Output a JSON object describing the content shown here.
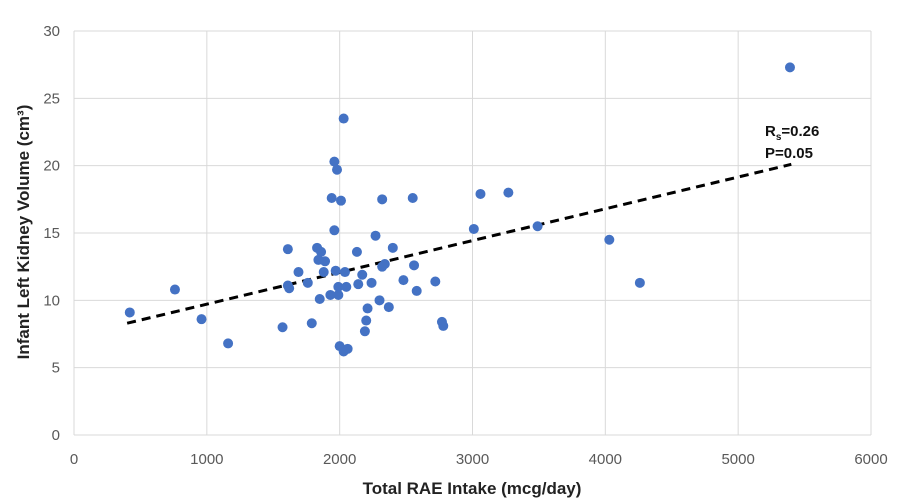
{
  "chart_data": {
    "type": "scatter",
    "xlabel": "Total RAE Intake (mcg/day)",
    "ylabel": "Infant Left Kidney Volume (cm³)",
    "xlim": [
      0,
      6000
    ],
    "ylim": [
      0,
      30
    ],
    "xticks": [
      0,
      1000,
      2000,
      3000,
      4000,
      5000,
      6000
    ],
    "yticks": [
      0,
      5,
      10,
      15,
      20,
      25,
      30
    ],
    "grid": true,
    "series": [
      {
        "points": [
          [
            420,
            9.1
          ],
          [
            760,
            10.8
          ],
          [
            960,
            8.6
          ],
          [
            1160,
            6.8
          ],
          [
            1570,
            8.0
          ],
          [
            1610,
            13.8
          ],
          [
            1620,
            10.9
          ],
          [
            1610,
            11.1
          ],
          [
            1690,
            12.1
          ],
          [
            1760,
            11.3
          ],
          [
            1790,
            8.3
          ],
          [
            1830,
            13.9
          ],
          [
            1840,
            13.0
          ],
          [
            1860,
            13.6
          ],
          [
            1850,
            10.1
          ],
          [
            1880,
            12.1
          ],
          [
            1890,
            12.9
          ],
          [
            1930,
            10.4
          ],
          [
            1940,
            17.6
          ],
          [
            1960,
            15.2
          ],
          [
            1960,
            20.3
          ],
          [
            1980,
            19.7
          ],
          [
            1970,
            12.2
          ],
          [
            1990,
            10.4
          ],
          [
            1990,
            11.0
          ],
          [
            2000,
            6.6
          ],
          [
            2010,
            17.4
          ],
          [
            2030,
            23.5
          ],
          [
            2030,
            6.2
          ],
          [
            2040,
            12.1
          ],
          [
            2050,
            11.0
          ],
          [
            2060,
            6.4
          ],
          [
            2130,
            13.6
          ],
          [
            2140,
            11.2
          ],
          [
            2170,
            11.9
          ],
          [
            2190,
            7.7
          ],
          [
            2200,
            8.5
          ],
          [
            2210,
            9.4
          ],
          [
            2240,
            11.3
          ],
          [
            2270,
            14.8
          ],
          [
            2300,
            10.0
          ],
          [
            2320,
            17.5
          ],
          [
            2320,
            12.5
          ],
          [
            2340,
            12.7
          ],
          [
            2370,
            9.5
          ],
          [
            2400,
            13.9
          ],
          [
            2480,
            11.5
          ],
          [
            2550,
            17.6
          ],
          [
            2560,
            12.6
          ],
          [
            2580,
            10.7
          ],
          [
            2720,
            11.4
          ],
          [
            2770,
            8.4
          ],
          [
            2780,
            8.1
          ],
          [
            3010,
            15.3
          ],
          [
            3060,
            17.9
          ],
          [
            3270,
            18.0
          ],
          [
            3490,
            15.5
          ],
          [
            4030,
            14.5
          ],
          [
            4260,
            11.3
          ],
          [
            5390,
            27.3
          ]
        ]
      }
    ],
    "trendline": {
      "x1": 400,
      "y1": 8.3,
      "x2": 5400,
      "y2": 20.1
    },
    "annotation": {
      "line1_main": "R",
      "line1_sub": "s",
      "line1_rest": "=0.26",
      "line2": "P=0.05"
    }
  }
}
